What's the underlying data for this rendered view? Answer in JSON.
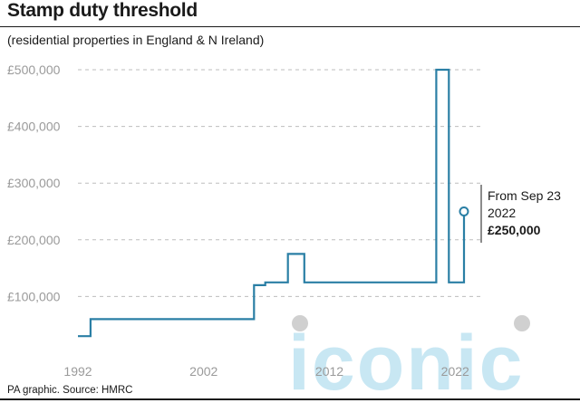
{
  "title": "Stamp duty threshold",
  "subtitle": "(residential properties in England & N Ireland)",
  "source": "PA graphic. Source: HMRC",
  "watermark": "iconic",
  "colors": {
    "line": "#2a7fa5",
    "grid": "#bdbdbd",
    "tick": "#9a9a9a",
    "watermark": "#bfe3f2",
    "watermark_dot": "#d0d0d0"
  },
  "chart_data": {
    "type": "line",
    "title": "Stamp duty threshold",
    "subtitle": "(residential properties in England & N Ireland)",
    "xlabel": "",
    "ylabel": "",
    "xlim": [
      1992,
      2024
    ],
    "ylim": [
      0,
      500000
    ],
    "grid": true,
    "y_ticks": [
      {
        "value": 100000,
        "label": "£100,000"
      },
      {
        "value": 200000,
        "label": "£200,000"
      },
      {
        "value": 300000,
        "label": "£300,000"
      },
      {
        "value": 400000,
        "label": "£400,000"
      },
      {
        "value": 500000,
        "label": "£500,000"
      }
    ],
    "x_ticks": [
      {
        "value": 1992,
        "label": "1992"
      },
      {
        "value": 2002,
        "label": "2002"
      },
      {
        "value": 2012,
        "label": "2012"
      },
      {
        "value": 2022,
        "label": "2022"
      }
    ],
    "series": [
      {
        "step": true,
        "points": [
          [
            1992.0,
            30000
          ],
          [
            1993.0,
            30000
          ],
          [
            1993.0,
            60000
          ],
          [
            2006.0,
            60000
          ],
          [
            2006.0,
            120000
          ],
          [
            2006.9,
            120000
          ],
          [
            2006.9,
            125000
          ],
          [
            2008.7,
            125000
          ],
          [
            2008.7,
            175000
          ],
          [
            2010.0,
            175000
          ],
          [
            2010.0,
            125000
          ],
          [
            2020.5,
            125000
          ],
          [
            2020.5,
            500000
          ],
          [
            2021.5,
            500000
          ],
          [
            2021.5,
            125000
          ],
          [
            2022.7,
            125000
          ],
          [
            2022.7,
            250000
          ]
        ]
      }
    ],
    "annotation": {
      "x": 2022.7,
      "y": 250000,
      "lines": [
        "From Sep 23",
        "2022"
      ],
      "value_label": "£250,000"
    }
  }
}
